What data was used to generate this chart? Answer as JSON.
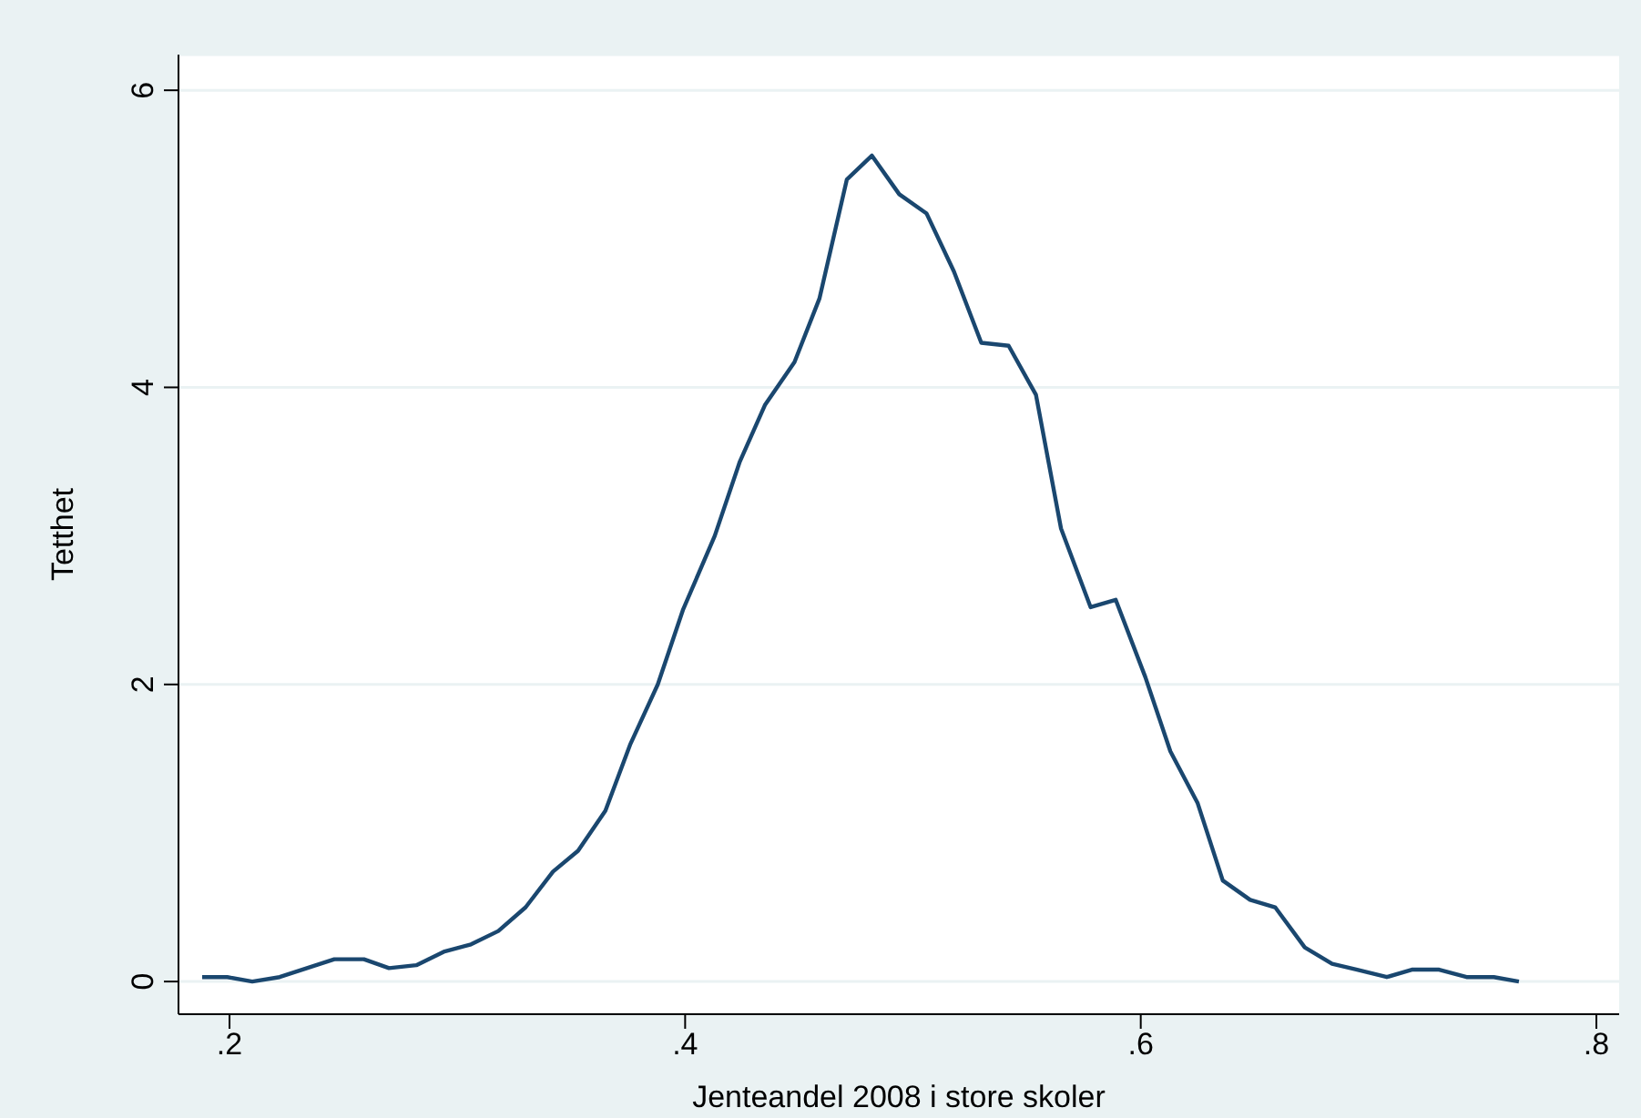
{
  "chart_data": {
    "type": "line",
    "xlabel": "Jenteandel 2008 i store skoler",
    "ylabel": "Tetthet",
    "x": [
      0.188,
      0.199,
      0.21,
      0.222,
      0.234,
      0.246,
      0.259,
      0.27,
      0.282,
      0.294,
      0.306,
      0.318,
      0.33,
      0.342,
      0.353,
      0.365,
      0.376,
      0.388,
      0.399,
      0.413,
      0.424,
      0.435,
      0.448,
      0.459,
      0.471,
      0.482,
      0.494,
      0.506,
      0.518,
      0.53,
      0.542,
      0.554,
      0.565,
      0.578,
      0.589,
      0.602,
      0.613,
      0.625,
      0.636,
      0.648,
      0.659,
      0.672,
      0.684,
      0.695,
      0.708,
      0.719,
      0.731,
      0.743,
      0.755,
      0.766
    ],
    "series": [
      {
        "color": "#1a476f",
        "values": [
          0.03,
          0.03,
          0.0,
          0.03,
          0.09,
          0.15,
          0.15,
          0.09,
          0.11,
          0.2,
          0.25,
          0.34,
          0.5,
          0.74,
          0.88,
          1.15,
          1.6,
          2.0,
          2.5,
          3.0,
          3.5,
          3.88,
          4.17,
          4.6,
          5.4,
          5.56,
          5.3,
          5.17,
          4.78,
          4.3,
          4.28,
          3.95,
          3.05,
          2.52,
          2.57,
          2.05,
          1.55,
          1.2,
          0.68,
          0.55,
          0.5,
          0.23,
          0.12,
          0.08,
          0.03,
          0.08,
          0.08,
          0.03,
          0.03,
          0.0
        ]
      }
    ],
    "xlim": [
      0.1776,
      0.81
    ],
    "xticks": [
      {
        "value": 0.2,
        "label": ".2"
      },
      {
        "value": 0.4,
        "label": ".4"
      },
      {
        "value": 0.6,
        "label": ".6"
      },
      {
        "value": 0.8,
        "label": ".8"
      }
    ],
    "ylim": [
      -0.22,
      6.24
    ],
    "yticks": [
      0,
      2,
      4,
      6
    ],
    "grid": "y",
    "marker": "none",
    "line_style": "solid"
  }
}
